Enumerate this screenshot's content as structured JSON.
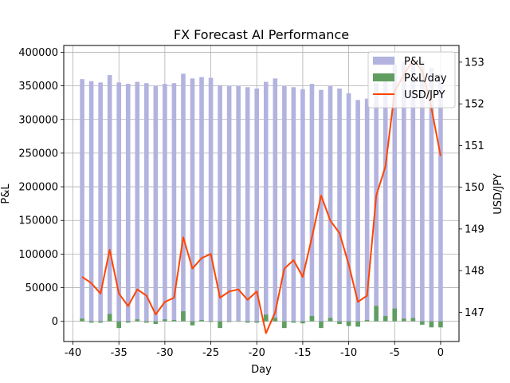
{
  "chart_data": {
    "type": "bar",
    "title": "FX Forecast AI Performance",
    "xlabel": "Day",
    "ylabel": "P&L",
    "y2label": "USD/JPY",
    "xlim": [
      -41,
      2
    ],
    "ylim": [
      -30000,
      410000
    ],
    "y2lim": [
      146.3,
      153.4
    ],
    "x_ticks": [
      -40,
      -35,
      -30,
      -25,
      -20,
      -15,
      -10,
      -5,
      0
    ],
    "y_ticks": [
      0,
      50000,
      100000,
      150000,
      200000,
      250000,
      300000,
      350000,
      400000
    ],
    "y2_ticks": [
      147,
      148,
      149,
      150,
      151,
      152,
      153
    ],
    "grid": true,
    "legend_position": "top-right",
    "x": [
      -39,
      -38,
      -37,
      -36,
      -35,
      -34,
      -33,
      -32,
      -31,
      -30,
      -29,
      -28,
      -27,
      -26,
      -25,
      -24,
      -23,
      -22,
      -21,
      -20,
      -19,
      -18,
      -17,
      -16,
      -15,
      -14,
      -13,
      -12,
      -11,
      -10,
      -9,
      -8,
      -7,
      -6,
      -5,
      -4,
      -3,
      -2,
      -1,
      0
    ],
    "series": [
      {
        "name": "P&L",
        "kind": "bar",
        "color": "#b3b3e0",
        "values": [
          360000,
          357000,
          355000,
          366000,
          355000,
          353000,
          356000,
          354000,
          350000,
          353000,
          354000,
          368000,
          361000,
          363000,
          362000,
          351000,
          350000,
          350000,
          348000,
          346000,
          356000,
          361000,
          350000,
          348000,
          345000,
          353000,
          344000,
          350000,
          346000,
          339000,
          329000,
          331000,
          354000,
          362000,
          381000,
          385000,
          390000,
          386000,
          377000,
          368000
        ]
      },
      {
        "name": "P&L/day",
        "kind": "bar",
        "color": "#5f9e5f",
        "values": [
          4000,
          -2000,
          -2000,
          11000,
          -10000,
          -2000,
          3000,
          -2000,
          -4000,
          3000,
          2000,
          15000,
          -6000,
          2000,
          -1000,
          -10000,
          -1000,
          0,
          -2000,
          -2000,
          10000,
          5000,
          -10000,
          -2000,
          -3000,
          8000,
          -10000,
          5000,
          -4000,
          -7000,
          -8000,
          2000,
          23000,
          8000,
          19000,
          4000,
          5000,
          -5000,
          -9000,
          -9000
        ]
      },
      {
        "name": "USD/JPY",
        "kind": "line",
        "axis": "right",
        "color": "#ff4500",
        "values": [
          147.85,
          147.7,
          147.45,
          148.5,
          147.45,
          147.15,
          147.55,
          147.4,
          146.95,
          147.25,
          147.35,
          148.8,
          148.05,
          148.3,
          148.4,
          147.35,
          147.5,
          147.55,
          147.3,
          147.5,
          146.5,
          147.0,
          148.05,
          148.25,
          147.85,
          148.8,
          149.8,
          149.2,
          148.9,
          148.15,
          147.25,
          147.4,
          149.8,
          150.5,
          152.3,
          152.7,
          153.05,
          152.8,
          151.9,
          150.75
        ]
      }
    ]
  }
}
